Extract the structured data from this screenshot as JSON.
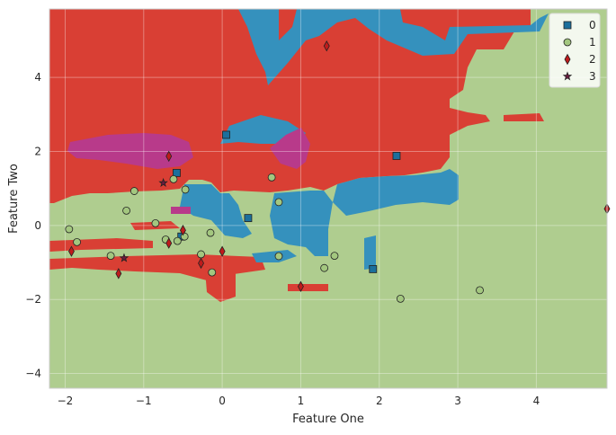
{
  "chart_data": {
    "type": "scatter",
    "title": "",
    "xlabel": "Feature One",
    "ylabel": "Feature Two",
    "xlim": [
      -2.2,
      4.9
    ],
    "ylim": [
      -4.4,
      5.85
    ],
    "xticks": [
      -2,
      -1,
      0,
      1,
      2,
      3,
      4
    ],
    "yticks": [
      -4,
      -2,
      0,
      2,
      4
    ],
    "xtick_labels": [
      "−2",
      "−1",
      "0",
      "1",
      "2",
      "3",
      "4"
    ],
    "ytick_labels": [
      "−4",
      "−2",
      "0",
      "2",
      "4"
    ],
    "grid": true,
    "legend_position": "top-right",
    "background_region_color": "#afcd8f",
    "series": [
      {
        "name": "0",
        "marker": "square",
        "color": "#1b6f9c",
        "points": [
          [
            0.05,
            2.45
          ],
          [
            -0.58,
            1.42
          ],
          [
            2.22,
            1.88
          ],
          [
            0.33,
            0.2
          ],
          [
            1.92,
            -1.18
          ],
          [
            -0.52,
            -0.3
          ]
        ]
      },
      {
        "name": "1",
        "marker": "circle",
        "color": "#a3c77f",
        "points": [
          [
            -1.12,
            0.93
          ],
          [
            -0.47,
            0.97
          ],
          [
            -0.62,
            1.25
          ],
          [
            0.63,
            1.3
          ],
          [
            -1.22,
            0.4
          ],
          [
            -0.85,
            0.06
          ],
          [
            -1.95,
            -0.1
          ],
          [
            -1.85,
            -0.45
          ],
          [
            -0.72,
            -0.38
          ],
          [
            -0.57,
            -0.42
          ],
          [
            -0.48,
            -0.3
          ],
          [
            -0.15,
            -0.2
          ],
          [
            -0.27,
            -0.78
          ],
          [
            -0.13,
            -1.27
          ],
          [
            -1.42,
            -0.82
          ],
          [
            0.72,
            0.63
          ],
          [
            0.72,
            -0.83
          ],
          [
            1.43,
            -0.82
          ],
          [
            1.3,
            -1.15
          ],
          [
            2.27,
            -1.98
          ],
          [
            3.28,
            -1.75
          ]
        ]
      },
      {
        "name": "2",
        "marker": "diamond",
        "color": "#bf1b1b",
        "points": [
          [
            1.33,
            4.85
          ],
          [
            -0.68,
            1.87
          ],
          [
            -0.5,
            -0.13
          ],
          [
            -0.68,
            -0.48
          ],
          [
            -1.92,
            -0.7
          ],
          [
            -0.27,
            -1.02
          ],
          [
            0.0,
            -0.7
          ],
          [
            -1.32,
            -1.3
          ],
          [
            1.0,
            -1.65
          ],
          [
            4.9,
            0.45
          ]
        ]
      },
      {
        "name": "3",
        "marker": "star",
        "color": "#6b1b3e",
        "points": [
          [
            -0.75,
            1.15
          ],
          [
            -1.25,
            -0.88
          ]
        ]
      }
    ]
  }
}
